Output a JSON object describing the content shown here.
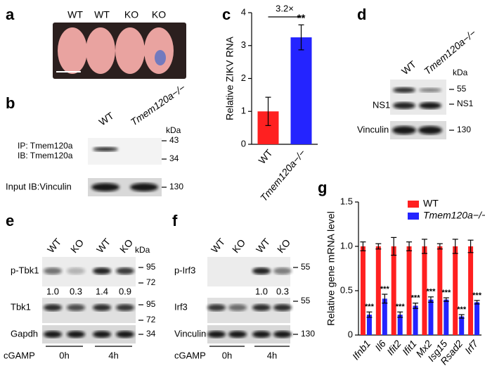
{
  "figure": {
    "a": {
      "label": "a",
      "lanes": [
        "WT",
        "WT",
        "KO",
        "KO"
      ]
    },
    "b": {
      "label": "b",
      "lanes": [
        "WT",
        "Tmem120a−/−"
      ],
      "unit": "kDa",
      "ip": "IP: Tmem120a",
      "ib": "IB: Tmem120a",
      "input": "Input  IB:Vinculin",
      "markers": [
        "43",
        "34",
        "130"
      ]
    },
    "c": {
      "label": "c"
    },
    "d": {
      "label": "d",
      "lanes": [
        "WT",
        "Tmem120a−/−"
      ],
      "unit": "kDa",
      "rows": [
        "NS1",
        "Vinculin"
      ],
      "band": "NS1",
      "markers": [
        "55",
        "130"
      ]
    },
    "e": {
      "label": "e",
      "lanes": [
        "WT",
        "KO",
        "WT",
        "KO"
      ],
      "unit": "kDa",
      "rows": [
        "p-Tbk1",
        "Tbk1",
        "Gapdh"
      ],
      "markers": [
        "95",
        "72",
        "95",
        "72",
        "34"
      ],
      "quant": [
        "1.0",
        "0.3",
        "1.4",
        "0.9"
      ],
      "treatment": "cGAMP",
      "times": [
        "0h",
        "4h"
      ]
    },
    "f": {
      "label": "f",
      "lanes": [
        "WT",
        "KO",
        "WT",
        "KO"
      ],
      "rows": [
        "p-Irf3",
        "Irf3",
        "Vinculin"
      ],
      "markers": [
        "55",
        "55",
        "130"
      ],
      "quant": [
        "1.0",
        "0.3"
      ],
      "treatment": "cGAMP",
      "times": [
        "0h",
        "4h"
      ]
    },
    "g": {
      "label": "g"
    }
  },
  "chart_data": [
    {
      "type": "bar",
      "y_label": "Relative ZIKV RNA",
      "categories": [
        "WT",
        "Tmem120a−/−"
      ],
      "values": [
        1.0,
        3.25
      ],
      "errors": [
        0.43,
        0.38
      ],
      "colors": [
        "#ff2020",
        "#2424ff"
      ],
      "ylim": [
        0,
        4
      ],
      "yticks": [
        0,
        1,
        2,
        3,
        4
      ],
      "annotation": "3.2×",
      "significance": [
        null,
        "**"
      ]
    },
    {
      "type": "bar",
      "y_label": "Relative gene mRNA level",
      "categories": [
        "Ifnb1",
        "Il6",
        "Ifit2",
        "Ifit1",
        "Mx2",
        "Isg15",
        "Rsad2",
        "Irf7"
      ],
      "series": [
        {
          "name": "WT",
          "color": "#ff2020",
          "values": [
            1.0,
            1.0,
            1.0,
            1.0,
            1.0,
            1.0,
            1.0,
            1.0
          ],
          "errors": [
            0.05,
            0.03,
            0.1,
            0.05,
            0.08,
            0.03,
            0.08,
            0.07
          ]
        },
        {
          "name": "Tmem120a−/−",
          "color": "#2424ff",
          "values": [
            0.23,
            0.41,
            0.23,
            0.33,
            0.4,
            0.4,
            0.21,
            0.37
          ],
          "errors": [
            0.03,
            0.05,
            0.03,
            0.03,
            0.03,
            0.02,
            0.02,
            0.02
          ]
        }
      ],
      "ylim": [
        0,
        1.5
      ],
      "yticks": [
        0,
        0.5,
        {
          "value": 1,
          "label": "1.0"
        },
        1.5
      ],
      "significance": [
        "***",
        "***",
        "***",
        "***",
        "***",
        "***",
        "***",
        "***"
      ]
    }
  ]
}
